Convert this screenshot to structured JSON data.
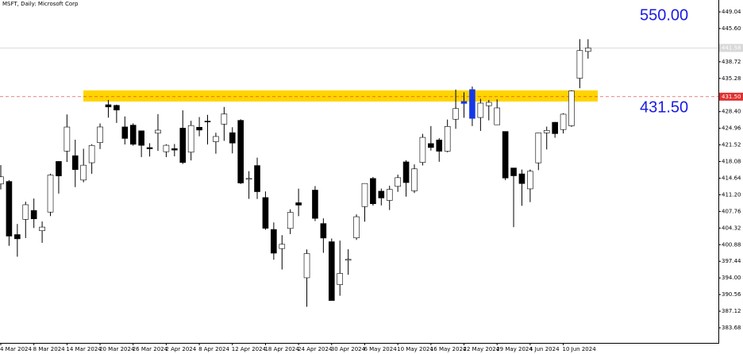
{
  "chart_data": {
    "type": "candlestick",
    "title": "MSFT, Daily:  Microsoft Corp",
    "categories": [
      "4 Mar 2024",
      null,
      null,
      null,
      "8 Mar 2024",
      null,
      null,
      null,
      "14 Mar 2024",
      null,
      null,
      null,
      "20 Mar 2024",
      null,
      null,
      null,
      "26 Mar 2024",
      null,
      null,
      null,
      "2 Apr 2024",
      null,
      null,
      null,
      "8 Apr 2024",
      null,
      null,
      null,
      "12 Apr 2024",
      null,
      null,
      null,
      "18 Apr 2024",
      null,
      null,
      null,
      "24 Apr 2024",
      null,
      null,
      null,
      "30 Apr 2024",
      null,
      null,
      null,
      "6 May 2024",
      null,
      null,
      null,
      "10 May 2024",
      null,
      null,
      null,
      "16 May 2024",
      null,
      null,
      null,
      "22 May 2024",
      null,
      null,
      null,
      "29 May 2024",
      null,
      null,
      null,
      "4 Jun 2024",
      null,
      null,
      null,
      "10 Jun 2024",
      null,
      null,
      null
    ],
    "open": [
      413.44,
      413.96,
      402.97,
      406.12,
      407.96,
      403.76,
      407.62,
      418.1,
      420.24,
      419.29,
      414.25,
      417.83,
      422.0,
      429.83,
      429.7,
      425.24,
      425.61,
      424.44,
      420.96,
      423.95,
      420.11,
      420.75,
      424.99,
      420.01,
      425.17,
      426.44,
      422.19,
      425.82,
      424.05,
      426.6,
      414.57,
      417.25,
      410.63,
      404.03,
      400.08,
      404.24,
      409.56,
      394.03,
      412.17,
      405.25,
      401.49,
      392.61,
      397.66,
      402.28,
      408.76,
      414.58,
      411.95,
      410.04,
      412.94,
      418.01,
      412.02,
      417.9,
      421.8,
      422.54,
      420.21,
      426.83,
      430.09,
      432.97,
      427.19,
      429.63,
      425.69,
      424.3,
      416.75,
      415.53,
      412.43,
      417.81,
      424.01,
      426.2,
      424.7,
      425.48,
      435.32,
      440.85
    ],
    "high": [
      417.35,
      414.25,
      405.16,
      409.78,
      410.42,
      405.68,
      415.57,
      418.18,
      427.82,
      422.6,
      420.73,
      421.67,
      425.96,
      430.82,
      429.86,
      427.41,
      425.99,
      424.45,
      421.87,
      427.89,
      421.65,
      421.71,
      428.67,
      426.51,
      427.28,
      427.74,
      424.04,
      429.37,
      425.18,
      426.82,
      416.09,
      418.88,
      411.89,
      405.48,
      402.85,
      408.2,
      412.47,
      399.89,
      413.0,
      406.32,
      402.16,
      401.72,
      399.93,
      407.15,
      413.2,
      414.89,
      412.49,
      413.07,
      415.38,
      418.35,
      417.49,
      423.81,
      425.42,
      422.92,
      426.77,
      432.97,
      432.41,
      433.6,
      431.06,
      430.82,
      430.94,
      424.3,
      416.75,
      416.42,
      416.44,
      424.08,
      425.31,
      426.28,
      428.08,
      432.82,
      443.4,
      443.39
    ],
    "low": [
      412.32,
      400.64,
      398.39,
      402.24,
      404.33,
      401.26,
      406.79,
      411.45,
      417.99,
      412.79,
      413.78,
      415.55,
      420.66,
      427.16,
      426.07,
      421.61,
      421.35,
      419.01,
      419.12,
      420.29,
      419.0,
      419.16,
      417.57,
      418.31,
      423.3,
      421.62,
      419.7,
      422.36,
      419.77,
      413.43,
      410.36,
      410.33,
      403.95,
      397.77,
      395.75,
      403.06,
      406.78,
      388.03,
      405.76,
      399.19,
      389.33,
      390.31,
      394.65,
      401.86,
      405.63,
      408.95,
      409.0,
      408.05,
      411.8,
      410.82,
      411.55,
      417.27,
      420.35,
      418.03,
      419.99,
      424.85,
      427.13,
      425.42,
      424.41,
      426.6,
      425.69,
      414.24,
      404.51,
      408.92,
      409.68,
      416.3,
      420.58,
      423.0,
      423.89,
      425.25,
      433.25,
      439.37
    ],
    "close": [
      414.92,
      402.65,
      402.09,
      409.14,
      406.22,
      404.52,
      415.28,
      415.1,
      425.22,
      416.42,
      417.32,
      421.41,
      425.23,
      429.37,
      428.74,
      422.86,
      421.65,
      421.43,
      420.72,
      424.57,
      421.44,
      420.45,
      417.88,
      425.52,
      424.59,
      426.28,
      423.26,
      427.93,
      421.9,
      413.64,
      414.58,
      411.84,
      404.27,
      399.12,
      400.96,
      407.57,
      409.06,
      399.04,
      406.32,
      402.25,
      389.33,
      394.94,
      397.84,
      406.66,
      413.54,
      409.34,
      410.54,
      412.32,
      414.74,
      413.72,
      416.56,
      423.08,
      420.99,
      420.21,
      425.34,
      429.04,
      430.52,
      427.0,
      430.16,
      430.32,
      429.17,
      414.67,
      415.13,
      413.52,
      416.07,
      424.01,
      424.52,
      423.85,
      427.87,
      432.68,
      441.06,
      441.58
    ],
    "colors": [
      null,
      null,
      null,
      null,
      null,
      null,
      null,
      null,
      null,
      null,
      null,
      null,
      null,
      null,
      null,
      null,
      null,
      null,
      null,
      null,
      null,
      null,
      null,
      null,
      null,
      null,
      null,
      null,
      null,
      null,
      null,
      null,
      null,
      null,
      null,
      null,
      null,
      null,
      null,
      null,
      null,
      null,
      null,
      null,
      null,
      null,
      null,
      null,
      null,
      null,
      null,
      null,
      null,
      null,
      null,
      null,
      "#1538e8",
      "#1538e8",
      null,
      null,
      null,
      null,
      null,
      null,
      null,
      null,
      null,
      null,
      null,
      null,
      null,
      null
    ],
    "up_color": "#ffffff",
    "down_color": "#000000",
    "ylim": [
      380.56,
      451.5
    ],
    "yticks": [
      449.04,
      {
        "value": 445.6,
        "label": "445.60"
      },
      438.72,
      435.28,
      {
        "value": 428.4,
        "label": "428.40"
      },
      424.96,
      421.52,
      418.08,
      414.64,
      {
        "value": 411.2,
        "label": "411.20"
      },
      407.76,
      404.32,
      400.88,
      397.44,
      {
        "value": 394,
        "label": "394.00"
      },
      390.56,
      387.12,
      383.68
    ],
    "zone": {
      "low": 430.5,
      "high": 432.8,
      "color": "#ffd400"
    },
    "level": {
      "value": 431.5,
      "label": "431.50",
      "color": "#e03030"
    },
    "last_price": 441.58,
    "annotations": [
      "550.00",
      "431.50"
    ]
  }
}
